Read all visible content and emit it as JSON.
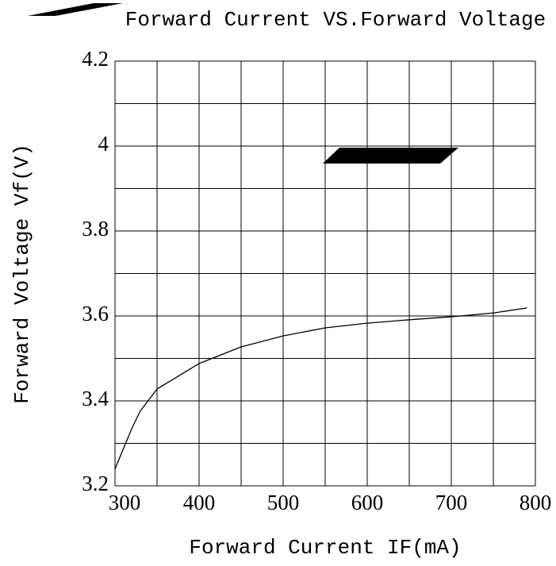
{
  "chart_data": {
    "type": "line",
    "title": "Forward Current VS.Forward Voltage",
    "x_label": "Forward Current IF(mA)",
    "y_label": "Forward Voltage Vf(V)",
    "x": [
      300,
      320,
      330,
      350,
      400,
      450,
      500,
      550,
      600,
      650,
      700,
      750,
      790
    ],
    "series": [
      {
        "name": "Vf",
        "color": "#000000",
        "values": [
          3.24,
          3.335,
          3.376,
          3.428,
          3.488,
          3.527,
          3.553,
          3.572,
          3.583,
          3.591,
          3.598,
          3.607,
          3.619
        ]
      }
    ],
    "xlim": [
      300,
      800
    ],
    "xticks": [
      300,
      400,
      500,
      600,
      700,
      800
    ],
    "xminor": [
      350,
      450,
      550,
      650,
      750
    ],
    "ylim": [
      3.2,
      4.2
    ],
    "yticks": [
      3.2,
      3.4,
      3.6,
      3.8,
      4.0,
      4.2
    ],
    "yminor": [
      3.3,
      3.5,
      3.7,
      3.9,
      4.1
    ],
    "grid": true
  }
}
